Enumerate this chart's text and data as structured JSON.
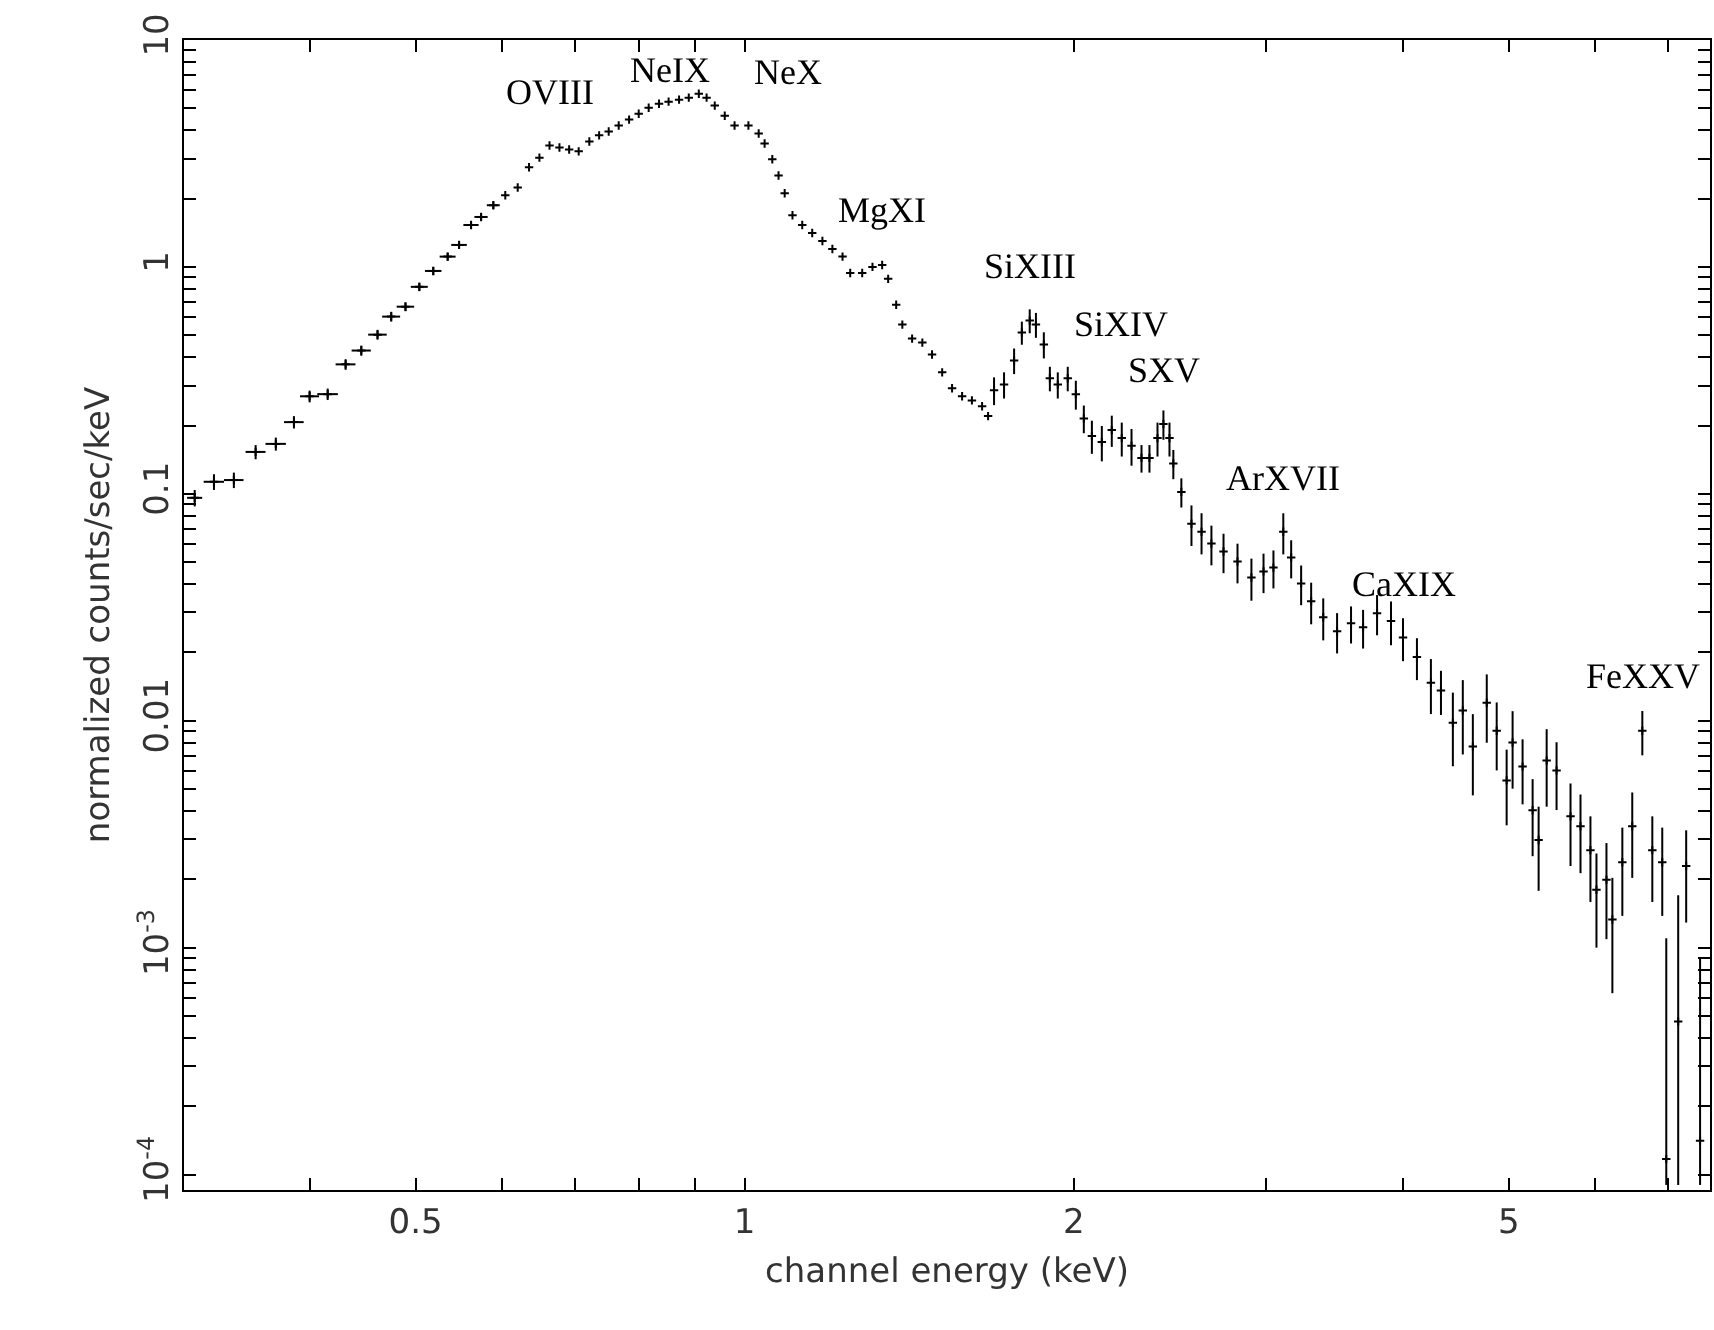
{
  "chart_data": {
    "type": "scatter",
    "xlabel": "channel energy (keV)",
    "ylabel": "normalized counts/sec/keV",
    "log": "xy",
    "grid": false,
    "marker": "cross",
    "xlim": [
      0.307,
      7.64
    ],
    "xticks": [
      {
        "value": 0.4,
        "label": null
      },
      0.5,
      {
        "value": 0.6,
        "label": null
      },
      {
        "value": 0.7,
        "label": null
      },
      {
        "value": 0.8,
        "label": null
      },
      {
        "value": 0.9,
        "label": null
      },
      1,
      2,
      {
        "value": 3,
        "label": null
      },
      {
        "value": 4,
        "label": null
      },
      5,
      {
        "value": 6,
        "label": null
      },
      {
        "value": 7,
        "label": null
      }
    ],
    "ylim": [
      8.55e-05,
      10
    ],
    "yticks": [
      {
        "value": 0.0001,
        "label": "10$^{-4}$"
      },
      {
        "value": 0.0002,
        "label": null
      },
      {
        "value": 0.0003,
        "label": null
      },
      {
        "value": 0.0004,
        "label": null
      },
      {
        "value": 0.0005,
        "label": null
      },
      {
        "value": 0.0006,
        "label": null
      },
      {
        "value": 0.0007,
        "label": null
      },
      {
        "value": 0.0008,
        "label": null
      },
      {
        "value": 0.0009,
        "label": null
      },
      {
        "value": 0.001,
        "label": "10$^{-3}$"
      },
      {
        "value": 0.002,
        "label": null
      },
      {
        "value": 0.003,
        "label": null
      },
      {
        "value": 0.004,
        "label": null
      },
      {
        "value": 0.005,
        "label": null
      },
      {
        "value": 0.006,
        "label": null
      },
      {
        "value": 0.007,
        "label": null
      },
      {
        "value": 0.008,
        "label": null
      },
      {
        "value": 0.009,
        "label": null
      },
      0.01,
      {
        "value": 0.02,
        "label": null
      },
      {
        "value": 0.03,
        "label": null
      },
      {
        "value": 0.04,
        "label": null
      },
      {
        "value": 0.05,
        "label": null
      },
      {
        "value": 0.06,
        "label": null
      },
      {
        "value": 0.07,
        "label": null
      },
      {
        "value": 0.08,
        "label": null
      },
      {
        "value": 0.09,
        "label": null
      },
      0.1,
      {
        "value": 0.2,
        "label": null
      },
      {
        "value": 0.3,
        "label": null
      },
      {
        "value": 0.4,
        "label": null
      },
      {
        "value": 0.5,
        "label": null
      },
      {
        "value": 0.6,
        "label": null
      },
      {
        "value": 0.7,
        "label": null
      },
      {
        "value": 0.8,
        "label": null
      },
      {
        "value": 0.9,
        "label": null
      },
      1,
      {
        "value": 2,
        "label": null
      },
      {
        "value": 3,
        "label": null
      },
      {
        "value": 4,
        "label": null
      },
      {
        "value": 5,
        "label": null
      },
      {
        "value": 6,
        "label": null
      },
      {
        "value": 7,
        "label": null
      },
      {
        "value": 8,
        "label": null
      },
      {
        "value": 9,
        "label": null
      },
      10
    ],
    "annotations": [
      {
        "text": "OVIII",
        "x": 0.663,
        "y": 3.43
      },
      {
        "text": "NeIX",
        "x": 0.908,
        "y": 5.8
      },
      {
        "text": "NeX",
        "x": 1.008,
        "y": 4.2
      },
      {
        "text": "MgXI",
        "x": 1.336,
        "y": 1.02
      },
      {
        "text": "SiXIII",
        "x": 1.823,
        "y": 0.58
      },
      {
        "text": "SiXIV",
        "x": 1.975,
        "y": 0.323
      },
      {
        "text": "SXV",
        "x": 2.416,
        "y": 0.203
      },
      {
        "text": "ArXVII",
        "x": 3.11,
        "y": 0.0681
      },
      {
        "text": "CaXIX",
        "x": 4.002,
        "y": 0.0233
      },
      {
        "text": "FeXXV",
        "x": 6.625,
        "y": 0.00904
      }
    ],
    "series": [
      {
        "color": "#000000",
        "x": [
          0.314,
          0.327,
          0.341,
          0.357,
          0.3725,
          0.387,
          0.4,
          0.4155,
          0.4315,
          0.446,
          0.4615,
          0.475,
          0.4895,
          0.504,
          0.519,
          0.535,
          0.548,
          0.562,
          0.574,
          0.589,
          0.604,
          0.62,
          0.635,
          0.649,
          0.663,
          0.677,
          0.691,
          0.705,
          0.721,
          0.736,
          0.751,
          0.767,
          0.784,
          0.8,
          0.817,
          0.835,
          0.852,
          0.871,
          0.889,
          0.908,
          0.923,
          0.939,
          0.959,
          0.979,
          1.008,
          1.03,
          1.043,
          1.06,
          1.074,
          1.088,
          1.106,
          1.129,
          1.153,
          1.178,
          1.203,
          1.229,
          1.249,
          1.281,
          1.309,
          1.336,
          1.353,
          1.376,
          1.394,
          1.423,
          1.454,
          1.484,
          1.516,
          1.548,
          1.581,
          1.614,
          1.649,
          1.67,
          1.691,
          1.727,
          1.764,
          1.793,
          1.823,
          1.847,
          1.878,
          1.902,
          1.934,
          1.975,
          2.009,
          2.043,
          2.078,
          2.122,
          2.167,
          2.213,
          2.259,
          2.307,
          2.346,
          2.386,
          2.416,
          2.447,
          2.467,
          2.509,
          2.563,
          2.618,
          2.673,
          2.742,
          2.824,
          2.908,
          2.983,
          3.046,
          3.11,
          3.162,
          3.229,
          3.298,
          3.383,
          3.483,
          3.587,
          3.679,
          3.789,
          3.902,
          4.002,
          4.121,
          4.244,
          4.335,
          4.445,
          4.539,
          4.636,
          4.774,
          4.875,
          4.978,
          5.041,
          5.148,
          5.258,
          5.325,
          5.416,
          5.53,
          5.695,
          5.816,
          5.939,
          6.015,
          6.143,
          6.22,
          6.352,
          6.486,
          6.625,
          6.766,
          6.909,
          6.968,
          7.145,
          7.266,
          7.482
        ],
        "values": [
          0.096,
          0.113,
          0.115,
          0.153,
          0.166,
          0.207,
          0.269,
          0.275,
          0.372,
          0.428,
          0.503,
          0.604,
          0.668,
          0.817,
          0.96,
          1.11,
          1.25,
          1.53,
          1.66,
          1.87,
          2.07,
          2.24,
          2.75,
          3.03,
          3.43,
          3.36,
          3.29,
          3.23,
          3.57,
          3.8,
          3.95,
          4.2,
          4.46,
          4.73,
          5.03,
          5.24,
          5.35,
          5.46,
          5.57,
          5.8,
          5.57,
          5.14,
          4.64,
          4.2,
          4.2,
          3.87,
          3.5,
          2.98,
          2.53,
          2.11,
          1.69,
          1.53,
          1.41,
          1.3,
          1.2,
          1.11,
          0.94,
          0.94,
          1.0,
          1.02,
          0.886,
          0.681,
          0.557,
          0.483,
          0.464,
          0.411,
          0.343,
          0.292,
          0.269,
          0.258,
          0.243,
          0.22,
          0.286,
          0.303,
          0.387,
          0.514,
          0.58,
          0.557,
          0.455,
          0.323,
          0.303,
          0.323,
          0.275,
          0.215,
          0.18,
          0.169,
          0.191,
          0.176,
          0.163,
          0.144,
          0.144,
          0.176,
          0.203,
          0.176,
          0.136,
          0.102,
          0.0739,
          0.0681,
          0.0604,
          0.0557,
          0.0503,
          0.0428,
          0.0455,
          0.0473,
          0.0681,
          0.0524,
          0.0403,
          0.0336,
          0.0286,
          0.0248,
          0.0269,
          0.0258,
          0.0298,
          0.0275,
          0.0233,
          0.0191,
          0.0147,
          0.0136,
          0.0098,
          0.0111,
          0.00769,
          0.012,
          0.00904,
          0.00546,
          0.00802,
          0.00628,
          0.00403,
          0.00298,
          0.00668,
          0.00604,
          0.00379,
          0.00343,
          0.00269,
          0.0018,
          0.00199,
          0.00133,
          0.00238,
          0.00343,
          0.00904,
          0.00269,
          0.00238,
          0.000117,
          0.000473,
          0.00229,
          0.000141
        ],
        "errors": [
          0.008,
          0.009,
          0.009,
          0.011,
          0.011,
          0.013,
          0.016,
          0.016,
          0.02,
          0.022,
          0.025,
          0.03,
          0.03,
          0.035,
          0.04,
          0.045,
          0.05,
          0.06,
          0.06,
          0.07,
          null,
          null,
          null,
          null,
          null,
          null,
          null,
          null,
          null,
          null,
          null,
          null,
          null,
          null,
          null,
          null,
          null,
          null,
          null,
          null,
          null,
          null,
          null,
          null,
          null,
          null,
          null,
          null,
          null,
          null,
          null,
          null,
          null,
          null,
          null,
          null,
          null,
          null,
          null,
          null,
          null,
          null,
          null,
          null,
          null,
          null,
          null,
          null,
          null,
          null,
          null,
          null,
          0.04,
          0.04,
          0.05,
          0.06,
          0.07,
          0.07,
          0.06,
          0.04,
          0.04,
          0.04,
          0.04,
          0.03,
          0.03,
          0.03,
          0.03,
          0.03,
          0.03,
          0.02,
          0.02,
          0.03,
          0.03,
          0.03,
          0.02,
          0.015,
          0.015,
          0.014,
          0.012,
          0.011,
          0.01,
          0.009,
          0.009,
          0.009,
          0.014,
          0.01,
          0.008,
          0.007,
          0.006,
          0.005,
          0.005,
          0.005,
          0.006,
          0.006,
          0.005,
          0.004,
          0.004,
          0.003,
          0.0035,
          0.004,
          0.003,
          0.004,
          0.003,
          0.002,
          0.003,
          0.002,
          0.0015,
          0.0012,
          0.0025,
          0.002,
          0.0015,
          0.0013,
          0.0011,
          0.0008,
          0.0009,
          0.0007,
          0.001,
          0.0014,
          0.002,
          0.0011,
          0.001,
          [
            9e-05,
            0.0011
          ],
          [
            9e-05,
            0.0017
          ],
          0.001,
          [
            9e-05,
            0.0009
          ]
        ],
        "xerrors": [
          0.005,
          0.007,
          0.007,
          0.0075,
          0.008,
          0.008,
          0.008,
          0.009,
          0.009,
          0.009,
          0.009,
          0.009,
          0.009,
          0.009,
          0.009,
          0.009,
          0.009,
          0.009,
          0.008,
          0.008,
          null,
          null,
          null,
          null,
          null,
          null,
          null,
          null,
          null,
          null,
          null,
          null,
          null,
          null,
          null,
          null,
          null,
          null,
          null,
          null,
          null,
          null,
          null,
          null,
          null,
          null,
          null,
          null,
          null,
          null,
          null,
          null,
          null,
          null,
          null,
          null,
          null,
          null,
          null,
          null,
          null,
          null,
          null,
          null,
          null,
          null,
          null,
          null,
          null,
          null,
          null,
          null,
          null,
          null,
          null,
          null,
          null,
          null,
          null,
          null,
          null,
          null,
          null,
          null,
          null,
          null,
          null,
          null,
          null,
          null,
          null,
          null,
          null,
          null,
          null,
          null,
          null,
          null,
          null,
          null,
          null,
          null,
          null,
          null,
          null,
          null,
          null,
          null,
          null,
          null,
          null,
          null,
          null,
          null,
          null,
          null,
          null,
          null,
          null,
          null,
          null,
          null,
          null,
          null,
          null,
          null,
          null,
          null,
          null,
          null,
          null,
          null,
          null,
          null,
          null,
          null,
          null,
          null,
          null,
          null,
          null,
          null,
          null,
          null,
          null
        ]
      }
    ]
  }
}
